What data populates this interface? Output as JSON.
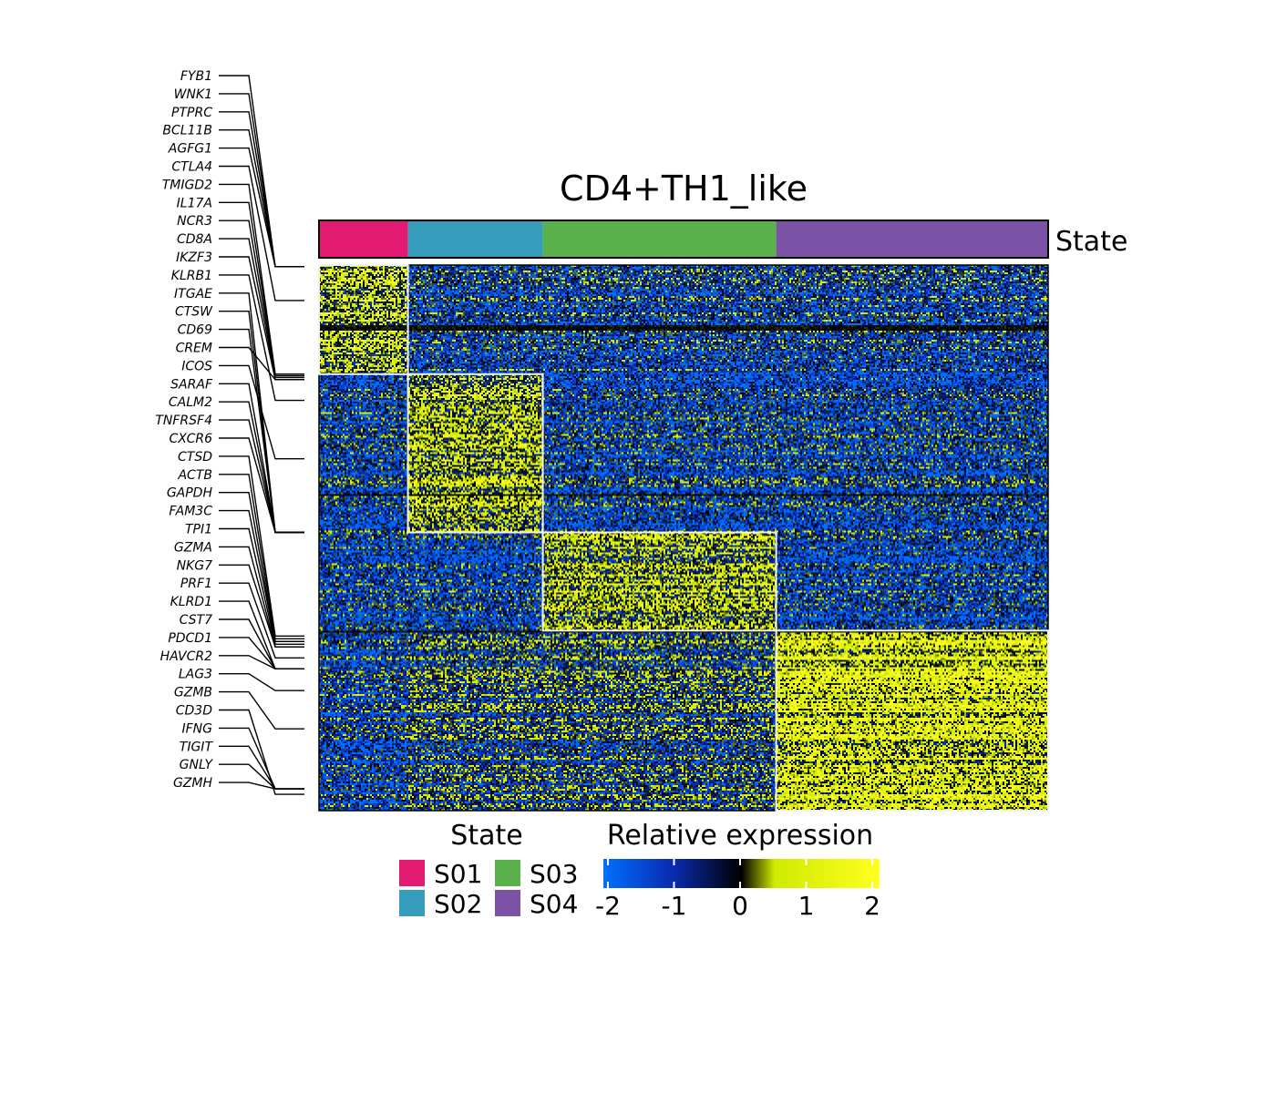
{
  "chart_data": {
    "type": "heatmap",
    "title": "CD4+TH1_like",
    "annotation": {
      "label": "State",
      "states": [
        {
          "name": "S01",
          "color": "#E31A72",
          "cell_fraction": 0.122
        },
        {
          "name": "S02",
          "color": "#369EBC",
          "cell_fraction": 0.185
        },
        {
          "name": "S03",
          "color": "#5AB04A",
          "cell_fraction": 0.32
        },
        {
          "name": "S04",
          "color": "#7B52A5",
          "cell_fraction": 0.373
        }
      ]
    },
    "gene_blocks": [
      {
        "state": "S01",
        "row_fraction": 0.2,
        "high_in": "S01"
      },
      {
        "state": "S02",
        "row_fraction": 0.29,
        "high_in": "S02"
      },
      {
        "state": "S03",
        "row_fraction": 0.18,
        "high_in": "S03"
      },
      {
        "state": "S04",
        "row_fraction": 0.33,
        "high_in": "S04"
      }
    ],
    "genes": [
      "FYB1",
      "WNK1",
      "PTPRC",
      "BCL11B",
      "AGFG1",
      "CTLA4",
      "TMIGD2",
      "IL17A",
      "NCR3",
      "CD8A",
      "IKZF3",
      "KLRB1",
      "ITGAE",
      "CTSW",
      "CD69",
      "CREM",
      "ICOS",
      "SARAF",
      "CALM2",
      "TNFRSF4",
      "CXCR6",
      "CTSD",
      "ACTB",
      "GAPDH",
      "FAM3C",
      "TPI1",
      "GZMA",
      "NKG7",
      "PRF1",
      "KLRD1",
      "CST7",
      "PDCD1",
      "HAVCR2",
      "LAG3",
      "GZMB",
      "CD3D",
      "IFNG",
      "TIGIT",
      "GNLY",
      "GZMH"
    ],
    "gene_row_positions": [
      0.003,
      0.003,
      0.003,
      0.003,
      0.003,
      0.065,
      0.2,
      0.2,
      0.203,
      0.206,
      0.21,
      0.248,
      0.49,
      0.49,
      0.49,
      0.21,
      0.355,
      0.49,
      0.49,
      0.49,
      0.49,
      0.68,
      0.685,
      0.69,
      0.69,
      0.695,
      0.7,
      0.7,
      0.72,
      0.74,
      0.74,
      0.74,
      0.74,
      0.78,
      0.85,
      0.97,
      0.96,
      0.96,
      0.96,
      0.96
    ],
    "color_scale": {
      "title": "Relative expression",
      "min": -2,
      "max": 2,
      "ticks": [
        "-2",
        "-1",
        "0",
        "1",
        "2"
      ],
      "colors": [
        "#0070FF",
        "#0A2BB0",
        "#000000",
        "#D8EE00",
        "#FFFF00"
      ]
    }
  }
}
